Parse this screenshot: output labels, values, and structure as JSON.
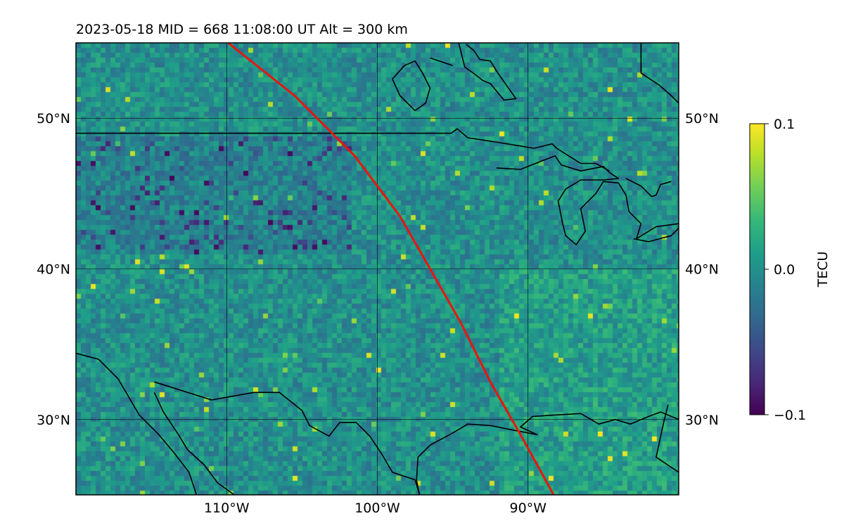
{
  "title": "2023-05-18  MID = 668    11:08:00  UT  Alt = 300 km",
  "chart_data": {
    "type": "heatmap",
    "title": "2023-05-18  MID = 668    11:08:00  UT  Alt = 300 km",
    "map_extent": {
      "lon": [
        -120,
        -80
      ],
      "lat": [
        25,
        55
      ]
    },
    "x_ticks": [
      {
        "lon": -110,
        "label": "110°W"
      },
      {
        "lon": -100,
        "label": "100°W"
      },
      {
        "lon": -90,
        "label": "90°W"
      }
    ],
    "y_ticks": [
      {
        "lat": 50,
        "label": "50°N"
      },
      {
        "lat": 40,
        "label": "40°N"
      },
      {
        "lat": 30,
        "label": "30°N"
      }
    ],
    "grid": true,
    "colorbar": {
      "label": "TECU",
      "range": [
        -0.1,
        0.1
      ],
      "ticks": [
        {
          "value": 0.1,
          "label": "0.1"
        },
        {
          "value": 0.0,
          "label": "0.0"
        },
        {
          "value": -0.1,
          "label": "−0.1"
        }
      ],
      "colormap": "viridis",
      "colormap_stops": [
        "#440154",
        "#482878",
        "#3e4989",
        "#31688e",
        "#26828e",
        "#1f9e89",
        "#35b779",
        "#6ece58",
        "#b5de2b",
        "#fde725"
      ]
    },
    "background_value": 0.0,
    "satellite_track": {
      "color": "#e8160c",
      "points": [
        [
          -109.9,
          55.0
        ],
        [
          -105.5,
          51.5
        ],
        [
          -101.5,
          47.5
        ],
        [
          -98.5,
          43.5
        ],
        [
          -96.5,
          40.0
        ],
        [
          -94.5,
          36.5
        ],
        [
          -92.5,
          32.5
        ],
        [
          -90.5,
          29.0
        ],
        [
          -88.3,
          25.0
        ]
      ]
    },
    "coastlines": [
      [
        [
          -80,
          26.5
        ],
        [
          -81.5,
          27.5
        ],
        [
          -81,
          29.8
        ],
        [
          -80.7,
          31.0
        ]
      ],
      [
        [
          -80.0,
          30.0
        ],
        [
          -81.2,
          30.5
        ],
        [
          -82.0,
          30.2
        ],
        [
          -83.2,
          29.7
        ],
        [
          -84.2,
          30.0
        ],
        [
          -85.3,
          29.7
        ],
        [
          -86.5,
          30.4
        ],
        [
          -88.2,
          30.3
        ],
        [
          -89.7,
          30.2
        ],
        [
          -90.5,
          29.5
        ],
        [
          -89.4,
          29.0
        ],
        [
          -91.0,
          29.3
        ],
        [
          -92.5,
          29.6
        ],
        [
          -94.0,
          29.7
        ],
        [
          -95.0,
          29.1
        ],
        [
          -96.5,
          28.3
        ],
        [
          -97.3,
          27.5
        ],
        [
          -97.4,
          26.0
        ],
        [
          -97.2,
          25.0
        ]
      ],
      [
        [
          -97.2,
          25.0
        ],
        [
          -97.5,
          26.0
        ],
        [
          -99.0,
          26.5
        ],
        [
          -99.7,
          27.7
        ],
        [
          -100.5,
          28.9
        ],
        [
          -101.4,
          29.8
        ],
        [
          -102.5,
          29.8
        ],
        [
          -103.2,
          28.9
        ],
        [
          -104.5,
          29.6
        ],
        [
          -105.0,
          30.6
        ],
        [
          -106.5,
          31.8
        ],
        [
          -108.2,
          31.8
        ],
        [
          -111.0,
          31.3
        ],
        [
          -114.8,
          32.5
        ]
      ],
      [
        [
          -120.0,
          34.4
        ],
        [
          -118.5,
          34.0
        ],
        [
          -117.2,
          32.7
        ],
        [
          -116.5,
          31.5
        ],
        [
          -115.8,
          30.3
        ],
        [
          -114.5,
          29.0
        ],
        [
          -113.5,
          27.8
        ],
        [
          -112.5,
          26.5
        ],
        [
          -112.0,
          25.0
        ]
      ],
      [
        [
          -114.8,
          31.8
        ],
        [
          -114.2,
          30.5
        ],
        [
          -113.2,
          29.0
        ],
        [
          -112.6,
          28.0
        ],
        [
          -111.5,
          27.0
        ],
        [
          -110.6,
          25.8
        ],
        [
          -109.5,
          25.0
        ]
      ],
      [
        [
          -120.0,
          49.0
        ],
        [
          -95.1,
          49.0
        ],
        [
          -94.7,
          49.3
        ],
        [
          -94.0,
          48.7
        ],
        [
          -92.0,
          48.4
        ],
        [
          -90.8,
          48.2
        ],
        [
          -89.6,
          48.0
        ],
        [
          -88.4,
          48.3
        ],
        [
          -88.1,
          48.0
        ],
        [
          -86.5,
          47.0
        ],
        [
          -85.5,
          47.0
        ],
        [
          -84.6,
          46.5
        ]
      ],
      [
        [
          -92.1,
          46.7
        ],
        [
          -90.5,
          46.6
        ],
        [
          -89.0,
          47.2
        ],
        [
          -88.2,
          47.5
        ],
        [
          -87.8,
          46.9
        ],
        [
          -86.5,
          46.5
        ],
        [
          -85.0,
          46.8
        ],
        [
          -84.6,
          46.4
        ]
      ],
      [
        [
          -84.6,
          46.4
        ],
        [
          -84.0,
          46.0
        ],
        [
          -85.0,
          45.9
        ],
        [
          -86.5,
          45.9
        ],
        [
          -87.5,
          45.3
        ],
        [
          -88.0,
          44.5
        ],
        [
          -87.7,
          43.0
        ],
        [
          -87.5,
          42.2
        ],
        [
          -86.8,
          41.6
        ],
        [
          -86.2,
          42.5
        ],
        [
          -86.5,
          44.0
        ],
        [
          -85.5,
          45.0
        ],
        [
          -85.0,
          45.8
        ],
        [
          -84.0,
          45.7
        ],
        [
          -83.5,
          44.9
        ],
        [
          -83.3,
          43.8
        ],
        [
          -82.5,
          43.0
        ],
        [
          -82.8,
          42.0
        ],
        [
          -81.5,
          42.8
        ],
        [
          -80,
          43.0
        ]
      ],
      [
        [
          -83.0,
          42.0
        ],
        [
          -82.0,
          41.8
        ],
        [
          -80.5,
          42.2
        ],
        [
          -80.0,
          42.7
        ]
      ],
      [
        [
          -83.5,
          46.0
        ],
        [
          -82.5,
          45.5
        ],
        [
          -81.8,
          44.8
        ],
        [
          -81.5,
          44.9
        ],
        [
          -81.2,
          45.6
        ],
        [
          -80.5,
          45.8
        ]
      ],
      [
        [
          -94.6,
          55.0
        ],
        [
          -94.2,
          53.4
        ],
        [
          -93.5,
          52.9
        ],
        [
          -93.0,
          52.5
        ],
        [
          -92.5,
          52.3
        ],
        [
          -91.6,
          51.2
        ],
        [
          -90.8,
          51.3
        ],
        [
          -91.3,
          52.0
        ],
        [
          -92.0,
          53.0
        ],
        [
          -92.5,
          53.8
        ],
        [
          -93.2,
          53.9
        ],
        [
          -93.6,
          54.5
        ],
        [
          -94.1,
          54.9
        ]
      ],
      [
        [
          -97.5,
          50.5
        ],
        [
          -98.5,
          51.5
        ],
        [
          -99.0,
          52.6
        ],
        [
          -98.2,
          53.5
        ],
        [
          -97.5,
          53.8
        ],
        [
          -97.0,
          53.0
        ],
        [
          -96.5,
          52.0
        ],
        [
          -96.8,
          51.0
        ],
        [
          -97.5,
          50.5
        ]
      ],
      [
        [
          -96.5,
          54.0
        ],
        [
          -95.0,
          53.5
        ]
      ],
      [
        [
          -82.5,
          55.0
        ],
        [
          -82.5,
          53.0
        ],
        [
          -81.3,
          52.2
        ],
        [
          -80.5,
          51.5
        ],
        [
          -80.0,
          51.0
        ]
      ]
    ]
  }
}
